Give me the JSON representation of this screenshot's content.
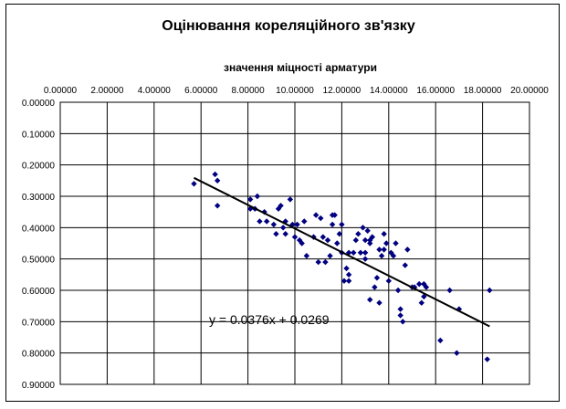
{
  "chart_data": {
    "type": "scatter",
    "title": "Оцінювання кореляційного зв'язку",
    "xlabel": "значення міцності арматури",
    "ylabel": "",
    "xlim": [
      0,
      20
    ],
    "ylim": [
      0,
      0.9
    ],
    "y_reversed": true,
    "x_axis_position": "top",
    "grid": true,
    "x_ticks": [
      "0.00000",
      "2.00000",
      "4.00000",
      "6.00000",
      "8.00000",
      "10.00000",
      "12.00000",
      "14.00000",
      "16.00000",
      "18.00000",
      "20.00000"
    ],
    "y_ticks": [
      "0.00000",
      "0.10000",
      "0.20000",
      "0.30000",
      "0.40000",
      "0.50000",
      "0.60000",
      "0.70000",
      "0.80000",
      "0.90000"
    ],
    "marker_color": "#000080",
    "marker_shape": "diamond",
    "series": [
      {
        "points": [
          [
            5.7,
            0.26
          ],
          [
            6.6,
            0.23
          ],
          [
            6.7,
            0.25
          ],
          [
            6.7,
            0.33
          ],
          [
            8.1,
            0.31
          ],
          [
            8.1,
            0.34
          ],
          [
            8.3,
            0.34
          ],
          [
            8.4,
            0.3
          ],
          [
            8.5,
            0.38
          ],
          [
            8.7,
            0.35
          ],
          [
            8.8,
            0.38
          ],
          [
            9.1,
            0.39
          ],
          [
            9.2,
            0.42
          ],
          [
            9.3,
            0.34
          ],
          [
            9.4,
            0.33
          ],
          [
            9.5,
            0.4
          ],
          [
            9.6,
            0.38
          ],
          [
            9.6,
            0.42
          ],
          [
            9.8,
            0.31
          ],
          [
            9.9,
            0.39
          ],
          [
            10.0,
            0.43
          ],
          [
            10.1,
            0.39
          ],
          [
            10.2,
            0.44
          ],
          [
            10.3,
            0.45
          ],
          [
            10.4,
            0.38
          ],
          [
            10.5,
            0.49
          ],
          [
            10.8,
            0.43
          ],
          [
            10.9,
            0.36
          ],
          [
            11.0,
            0.51
          ],
          [
            11.1,
            0.37
          ],
          [
            11.2,
            0.43
          ],
          [
            11.3,
            0.51
          ],
          [
            11.4,
            0.44
          ],
          [
            11.5,
            0.49
          ],
          [
            11.6,
            0.39
          ],
          [
            11.6,
            0.36
          ],
          [
            11.7,
            0.36
          ],
          [
            11.8,
            0.45
          ],
          [
            11.9,
            0.42
          ],
          [
            12.0,
            0.48
          ],
          [
            12.0,
            0.39
          ],
          [
            12.1,
            0.57
          ],
          [
            12.2,
            0.53
          ],
          [
            12.3,
            0.55
          ],
          [
            12.3,
            0.57
          ],
          [
            12.5,
            0.48
          ],
          [
            12.6,
            0.44
          ],
          [
            12.7,
            0.42
          ],
          [
            12.8,
            0.48
          ],
          [
            12.9,
            0.4
          ],
          [
            13.0,
            0.48
          ],
          [
            13.0,
            0.5
          ],
          [
            13.1,
            0.41
          ],
          [
            13.2,
            0.44
          ],
          [
            13.2,
            0.45
          ],
          [
            13.3,
            0.43
          ],
          [
            13.4,
            0.59
          ],
          [
            13.5,
            0.56
          ],
          [
            13.6,
            0.47
          ],
          [
            13.7,
            0.49
          ],
          [
            13.8,
            0.42
          ],
          [
            13.8,
            0.47
          ],
          [
            13.9,
            0.45
          ],
          [
            14.0,
            0.57
          ],
          [
            14.1,
            0.48
          ],
          [
            14.2,
            0.49
          ],
          [
            14.3,
            0.45
          ],
          [
            14.4,
            0.6
          ],
          [
            14.5,
            0.66
          ],
          [
            14.5,
            0.68
          ],
          [
            14.6,
            0.7
          ],
          [
            14.7,
            0.52
          ],
          [
            14.8,
            0.47
          ],
          [
            15.0,
            0.59
          ],
          [
            15.1,
            0.59
          ],
          [
            15.3,
            0.58
          ],
          [
            15.4,
            0.64
          ],
          [
            15.5,
            0.58
          ],
          [
            15.5,
            0.62
          ],
          [
            15.6,
            0.59
          ],
          [
            16.2,
            0.76
          ],
          [
            16.6,
            0.6
          ],
          [
            16.9,
            0.8
          ],
          [
            17.0,
            0.66
          ],
          [
            18.2,
            0.82
          ],
          [
            18.3,
            0.6
          ],
          [
            13.2,
            0.63
          ],
          [
            13.6,
            0.64
          ],
          [
            13.0,
            0.44
          ],
          [
            12.3,
            0.48
          ]
        ]
      }
    ],
    "trendline": {
      "equation": "y = 0.0376x + 0.0269",
      "slope": 0.0376,
      "intercept": 0.0269,
      "x_range": [
        5.7,
        18.3
      ]
    }
  }
}
